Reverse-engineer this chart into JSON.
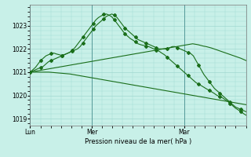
{
  "bg_color": "#c8f0e8",
  "grid_color": "#a0d8d0",
  "line_color": "#1a6e1a",
  "title": "Pression niveau de la mer( hPa )",
  "xlabel_ticks": [
    "Lun",
    "Mer",
    "Mar"
  ],
  "ylim": [
    1018.7,
    1023.9
  ],
  "yticks": [
    1019,
    1020,
    1021,
    1022,
    1023
  ],
  "line_up_peak": [
    1021.0,
    1021.05,
    1021.1,
    1021.15,
    1021.2,
    1021.25,
    1021.35,
    1021.45,
    1021.5,
    1021.55,
    1021.6,
    1021.65,
    1021.7,
    1021.75,
    1021.8,
    1021.85,
    1021.9,
    1021.95,
    1022.0,
    1022.1,
    1022.25,
    1022.4,
    1022.55,
    1022.7,
    1022.85,
    1023.0,
    1023.1,
    1023.2,
    1023.3,
    1023.4,
    1023.45,
    1023.5,
    1023.45,
    1023.35,
    1023.2,
    1023.05,
    1022.9,
    1022.8,
    1022.7,
    1022.6,
    1022.5,
    1022.4,
    1022.35,
    1022.3,
    1022.25,
    1022.2,
    1022.15,
    1022.1,
    1022.05,
    1022.0,
    1022.0,
    1022.0,
    1022.0,
    1022.05,
    1022.1,
    1022.1,
    1022.05,
    1022.0,
    1021.95,
    1021.9,
    1021.85,
    1021.8,
    1021.7,
    1021.5,
    1021.3,
    1021.1,
    1020.9,
    1020.75,
    1020.6,
    1020.45,
    1020.3,
    1020.2,
    1020.1,
    1020.0,
    1019.9,
    1019.8,
    1019.7,
    1019.6,
    1019.5,
    1019.45,
    1019.4,
    1019.35,
    1019.3
  ],
  "line_up_peak2": [
    1021.0,
    1021.1,
    1021.2,
    1021.35,
    1021.5,
    1021.6,
    1021.7,
    1021.75,
    1021.8,
    1021.82,
    1021.78,
    1021.75,
    1021.72,
    1021.75,
    1021.8,
    1021.85,
    1021.95,
    1022.05,
    1022.2,
    1022.35,
    1022.5,
    1022.65,
    1022.8,
    1022.95,
    1023.1,
    1023.25,
    1023.35,
    1023.42,
    1023.48,
    1023.5,
    1023.45,
    1023.38,
    1023.25,
    1023.1,
    1022.95,
    1022.8,
    1022.65,
    1022.55,
    1022.45,
    1022.38,
    1022.3,
    1022.22,
    1022.18,
    1022.15,
    1022.12,
    1022.1,
    1022.05,
    1022.0,
    1021.95,
    1021.9,
    1021.82,
    1021.75,
    1021.65,
    1021.55,
    1021.45,
    1021.35,
    1021.25,
    1021.15,
    1021.05,
    1020.95,
    1020.85,
    1020.75,
    1020.65,
    1020.55,
    1020.48,
    1020.42,
    1020.35,
    1020.28,
    1020.22,
    1020.15,
    1020.08,
    1020.0,
    1019.95,
    1019.9,
    1019.82,
    1019.75,
    1019.65,
    1019.55,
    1019.45,
    1019.38,
    1019.3,
    1019.22,
    1019.15
  ],
  "line_diag1": [
    1021.0,
    1021.02,
    1021.04,
    1021.06,
    1021.08,
    1021.1,
    1021.12,
    1021.14,
    1021.16,
    1021.18,
    1021.2,
    1021.22,
    1021.24,
    1021.26,
    1021.28,
    1021.3,
    1021.32,
    1021.34,
    1021.36,
    1021.38,
    1021.4,
    1021.42,
    1021.44,
    1021.46,
    1021.48,
    1021.5,
    1021.52,
    1021.54,
    1021.56,
    1021.58,
    1021.6,
    1021.62,
    1021.64,
    1021.66,
    1021.68,
    1021.7,
    1021.72,
    1021.74,
    1021.76,
    1021.78,
    1021.8,
    1021.82,
    1021.84,
    1021.86,
    1021.88,
    1021.9,
    1021.92,
    1021.94,
    1021.96,
    1021.98,
    1022.0,
    1022.02,
    1022.04,
    1022.06,
    1022.08,
    1022.1,
    1022.12,
    1022.14,
    1022.16,
    1022.18,
    1022.2,
    1022.22,
    1022.2,
    1022.18,
    1022.15,
    1022.12,
    1022.1,
    1022.07,
    1022.04,
    1022.0,
    1021.96,
    1021.92,
    1021.88,
    1021.84,
    1021.8,
    1021.76,
    1021.72,
    1021.68,
    1021.64,
    1021.6,
    1021.55,
    1021.5
  ],
  "line_diag2": [
    1021.0,
    1021.0,
    1021.0,
    1021.0,
    1021.0,
    1021.0,
    1021.0,
    1021.0,
    1020.99,
    1020.98,
    1020.97,
    1020.96,
    1020.95,
    1020.94,
    1020.93,
    1020.92,
    1020.9,
    1020.88,
    1020.86,
    1020.84,
    1020.82,
    1020.8,
    1020.78,
    1020.76,
    1020.74,
    1020.72,
    1020.7,
    1020.68,
    1020.66,
    1020.64,
    1020.62,
    1020.6,
    1020.58,
    1020.56,
    1020.54,
    1020.52,
    1020.5,
    1020.48,
    1020.46,
    1020.44,
    1020.42,
    1020.4,
    1020.38,
    1020.36,
    1020.34,
    1020.32,
    1020.3,
    1020.28,
    1020.26,
    1020.24,
    1020.22,
    1020.2,
    1020.18,
    1020.16,
    1020.14,
    1020.12,
    1020.1,
    1020.08,
    1020.06,
    1020.04,
    1020.02,
    1020.0,
    1019.98,
    1019.96,
    1019.94,
    1019.92,
    1019.9,
    1019.88,
    1019.86,
    1019.84,
    1019.82,
    1019.8,
    1019.78,
    1019.76,
    1019.74,
    1019.72,
    1019.7,
    1019.68,
    1019.66,
    1019.64,
    1019.62,
    1019.6
  ]
}
